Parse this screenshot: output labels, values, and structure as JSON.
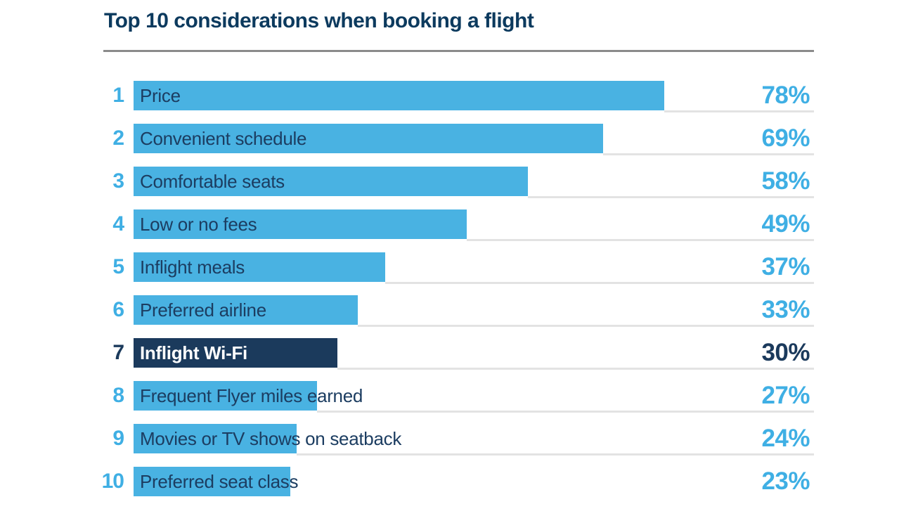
{
  "title": "Top 10 considerations when booking a flight",
  "colors": {
    "accent_blue": "#49B2E2",
    "number_blue": "#3FAFE4",
    "highlight_navy": "#1B3A5C",
    "title_navy": "#0C3A5E",
    "label_navy": "#1C3D61",
    "rule_gray": "#8B8B8B",
    "separator_gray": "#E3E3E3",
    "background": "#FFFFFF"
  },
  "chart_data": {
    "type": "bar",
    "orientation": "horizontal",
    "title": "Top 10 considerations when booking a flight",
    "categories": [
      "Price",
      "Convenient schedule",
      "Comfortable seats",
      "Low or no fees",
      "Inflight meals",
      "Preferred airline",
      "Inflight Wi-Fi",
      "Frequent Flyer miles earned",
      "Movies or TV shows on seatback",
      "Preferred seat class"
    ],
    "values": [
      78,
      69,
      58,
      49,
      37,
      33,
      30,
      27,
      24,
      23
    ],
    "value_labels": [
      "78%",
      "69%",
      "58%",
      "49%",
      "37%",
      "33%",
      "30%",
      "27%",
      "24%",
      "23%"
    ],
    "ranks": [
      "1",
      "2",
      "3",
      "4",
      "5",
      "6",
      "7",
      "8",
      "9",
      "10"
    ],
    "unit": "%",
    "xlim": [
      0,
      100
    ],
    "grid": false,
    "legend": false,
    "highlighted_category": "Inflight Wi-Fi",
    "highlighted_index": 6
  },
  "rows": [
    {
      "rank": "1",
      "label": "Price",
      "value": 78,
      "percent_label": "78%",
      "highlighted": false
    },
    {
      "rank": "2",
      "label": "Convenient schedule",
      "value": 69,
      "percent_label": "69%",
      "highlighted": false
    },
    {
      "rank": "3",
      "label": "Comfortable seats",
      "value": 58,
      "percent_label": "58%",
      "highlighted": false
    },
    {
      "rank": "4",
      "label": "Low or no fees",
      "value": 49,
      "percent_label": "49%",
      "highlighted": false
    },
    {
      "rank": "5",
      "label": "Inflight meals",
      "value": 37,
      "percent_label": "37%",
      "highlighted": false
    },
    {
      "rank": "6",
      "label": "Preferred airline",
      "value": 33,
      "percent_label": "33%",
      "highlighted": false
    },
    {
      "rank": "7",
      "label": "Inflight Wi-Fi",
      "value": 30,
      "percent_label": "30%",
      "highlighted": true
    },
    {
      "rank": "8",
      "label": "Frequent Flyer miles earned",
      "value": 27,
      "percent_label": "27%",
      "highlighted": false
    },
    {
      "rank": "9",
      "label": "Movies or TV shows on seatback",
      "value": 24,
      "percent_label": "24%",
      "highlighted": false
    },
    {
      "rank": "10",
      "label": "Preferred seat class",
      "value": 23,
      "percent_label": "23%",
      "highlighted": false
    }
  ]
}
